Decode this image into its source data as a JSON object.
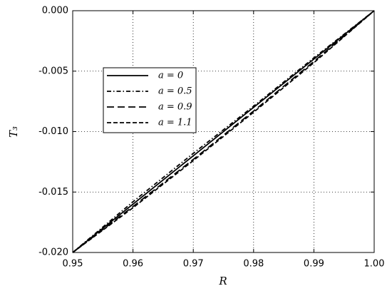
{
  "chart_data": {
    "type": "line",
    "xlabel": "R",
    "ylabel": "T₃",
    "x": [
      0.95,
      0.96,
      0.97,
      0.98,
      0.99,
      1.0
    ],
    "series": [
      {
        "name": "a = 0",
        "color": "#000000",
        "linestyle": "solid",
        "values": [
          -0.02,
          -0.016,
          -0.012,
          -0.008,
          -0.004,
          0
        ]
      },
      {
        "name": "a = 0.5",
        "color": "#000000",
        "linestyle": "dashdot",
        "values": [
          -0.02,
          -0.0158,
          -0.0118,
          -0.0079,
          -0.0039,
          0
        ]
      },
      {
        "name": "a = 0.9",
        "color": "#000000",
        "linestyle": "longdash",
        "values": [
          -0.02,
          -0.0162,
          -0.0123,
          -0.0083,
          -0.0042,
          0
        ]
      },
      {
        "name": "a = 1.1",
        "color": "#000000",
        "linestyle": "dashed",
        "values": [
          -0.02,
          -0.0163,
          -0.0124,
          -0.0084,
          -0.0043,
          0
        ]
      }
    ],
    "xlim": [
      0.95,
      1.0
    ],
    "xticks": [
      0.95,
      0.96,
      0.97,
      0.98,
      0.99,
      {
        "value": 1.0,
        "label": "1.00"
      }
    ],
    "ylim": [
      -0.02,
      0
    ],
    "yticks": [
      {
        "value": -0.02,
        "label": "-0.020"
      },
      -0.015,
      {
        "value": -0.01,
        "label": "-0.010"
      },
      -0.005,
      {
        "value": 0,
        "label": "0.000"
      }
    ],
    "grid": true
  }
}
